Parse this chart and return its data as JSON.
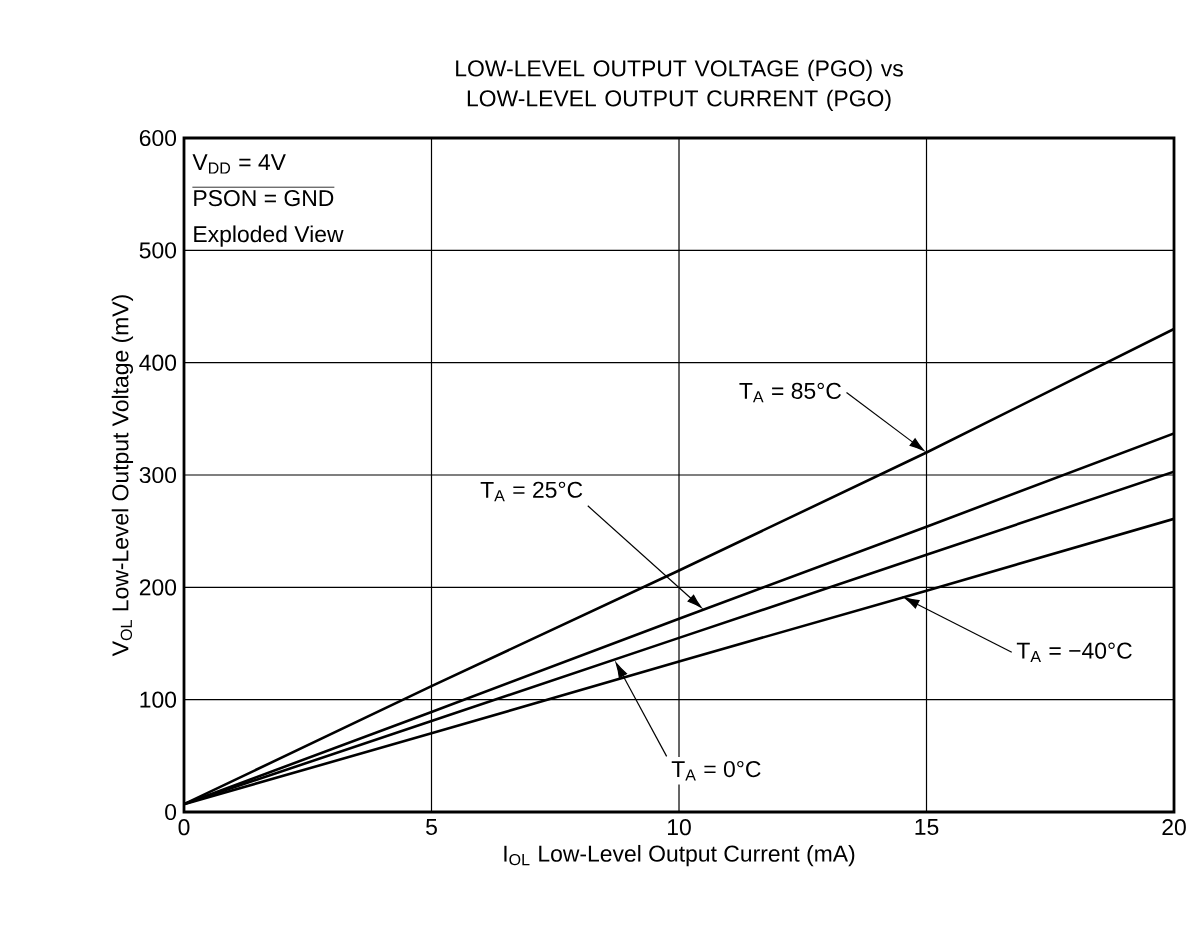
{
  "chart_data": {
    "type": "line",
    "title": "LOW-LEVEL OUTPUT VOLTAGE (PGO) vs LOW-LEVEL OUTPUT CURRENT (PGO)",
    "xlabel": "I$_{OL}$ Low-Level Output Current (mA)",
    "ylabel": "V$_{OL}$ Low-Level Output Voltage (mV)",
    "x": [
      0,
      5,
      10,
      15,
      20
    ],
    "series": [
      {
        "color": "#000000",
        "values": [
          7,
          112,
          215,
          320,
          430
        ]
      },
      {
        "color": "#000000",
        "values": [
          7,
          89,
          172,
          254,
          337
        ]
      },
      {
        "color": "#000000",
        "values": [
          7,
          81,
          155,
          229,
          303
        ]
      },
      {
        "color": "#000000",
        "values": [
          7,
          70,
          134,
          197,
          261
        ]
      }
    ],
    "annotations": [
      {
        "text": "T$_{A}$ = 85°C",
        "x": 15,
        "y": 320
      },
      {
        "text": "T$_{A}$ = 25°C",
        "x": 10.5,
        "y": 180
      },
      {
        "text": "T$_{A}$ = 0°C",
        "x": 8.7,
        "y": 135
      },
      {
        "text": "T$_{A}$ = −40°C",
        "x": 14.5,
        "y": 192
      },
      "V$_{DD}$ = 4V",
      "PSON = GND",
      "Exploded View"
    ],
    "xlim": [
      0,
      20
    ],
    "ylim": [
      0,
      600
    ],
    "xticks": [
      0,
      5,
      10,
      15,
      20
    ],
    "yticks": [
      0,
      100,
      200,
      300,
      400,
      500,
      600
    ],
    "grid": true,
    "marker": "none",
    "line_style": "solid"
  }
}
